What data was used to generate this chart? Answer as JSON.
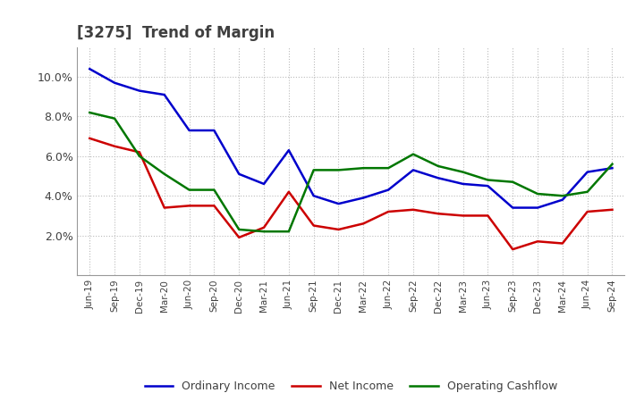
{
  "title": "[3275]  Trend of Margin",
  "x_labels": [
    "Jun-19",
    "Sep-19",
    "Dec-19",
    "Mar-20",
    "Jun-20",
    "Sep-20",
    "Dec-20",
    "Mar-21",
    "Jun-21",
    "Sep-21",
    "Dec-21",
    "Mar-22",
    "Jun-22",
    "Sep-22",
    "Dec-22",
    "Mar-23",
    "Jun-23",
    "Sep-23",
    "Dec-23",
    "Mar-24",
    "Jun-24",
    "Sep-24"
  ],
  "ordinary_income": [
    10.4,
    9.7,
    9.3,
    9.1,
    7.3,
    7.3,
    5.1,
    4.6,
    6.3,
    4.0,
    3.6,
    3.9,
    4.3,
    5.3,
    4.9,
    4.6,
    4.5,
    3.4,
    3.4,
    3.8,
    5.2,
    5.4
  ],
  "net_income": [
    6.9,
    6.5,
    6.2,
    3.4,
    3.5,
    3.5,
    1.9,
    2.4,
    4.2,
    2.5,
    2.3,
    2.6,
    3.2,
    3.3,
    3.1,
    3.0,
    3.0,
    1.3,
    1.7,
    1.6,
    3.2,
    3.3
  ],
  "operating_cashflow": [
    8.2,
    7.9,
    6.0,
    5.1,
    4.3,
    4.3,
    2.3,
    2.2,
    2.2,
    5.3,
    5.3,
    5.4,
    5.4,
    6.1,
    5.5,
    5.2,
    4.8,
    4.7,
    4.1,
    4.0,
    4.2,
    5.6
  ],
  "ylim": [
    0.0,
    11.5
  ],
  "yticks": [
    2.0,
    4.0,
    6.0,
    8.0,
    10.0
  ],
  "ytick_labels": [
    "2.0%",
    "4.0%",
    "6.0%",
    "8.0%",
    "10.0%"
  ],
  "colors": {
    "ordinary_income": "#0000cc",
    "net_income": "#cc0000",
    "operating_cashflow": "#007700"
  },
  "legend_labels": [
    "Ordinary Income",
    "Net Income",
    "Operating Cashflow"
  ],
  "title_color": "#404040",
  "background_color": "#ffffff",
  "grid_color": "#bbbbbb",
  "line_width": 1.8
}
